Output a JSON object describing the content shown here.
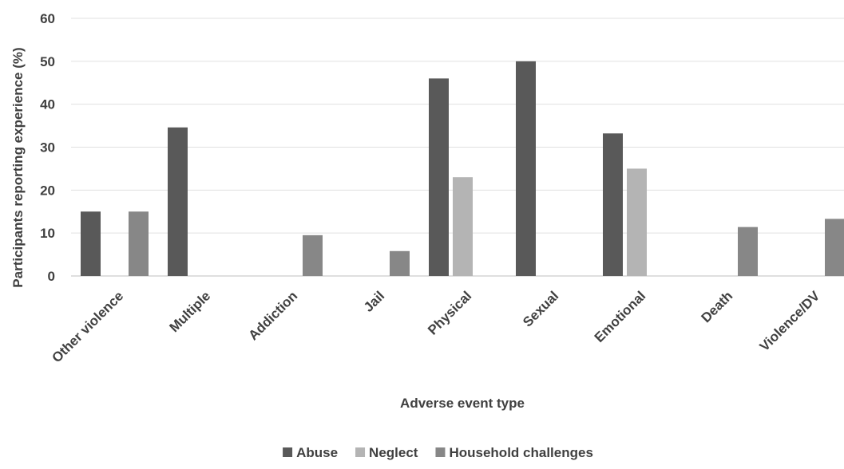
{
  "chart_data": {
    "type": "bar",
    "categories": [
      "Other violence",
      "Multiple",
      "Addiction",
      "Jail",
      "Physical",
      "Sexual",
      "Emotional",
      "Death",
      "Violence/DV"
    ],
    "series": [
      {
        "name": "Abuse",
        "color": "#595959",
        "values": [
          15,
          34.6,
          null,
          null,
          46,
          50,
          33.2,
          null,
          null
        ]
      },
      {
        "name": "Neglect",
        "color": "#b4b4b4",
        "values": [
          null,
          null,
          null,
          null,
          23,
          null,
          25,
          null,
          null
        ]
      },
      {
        "name": "Household challenges",
        "color": "#878787",
        "values": [
          15,
          null,
          9.5,
          5.8,
          null,
          null,
          null,
          11.4,
          13.3
        ]
      }
    ],
    "xlabel": "Adverse event type",
    "ylabel": "Participants reporting experience (%)",
    "ylim": [
      0,
      60
    ],
    "yticks": [
      0,
      10,
      20,
      30,
      40,
      50,
      60
    ],
    "grid": true,
    "legend_position": "bottom"
  }
}
